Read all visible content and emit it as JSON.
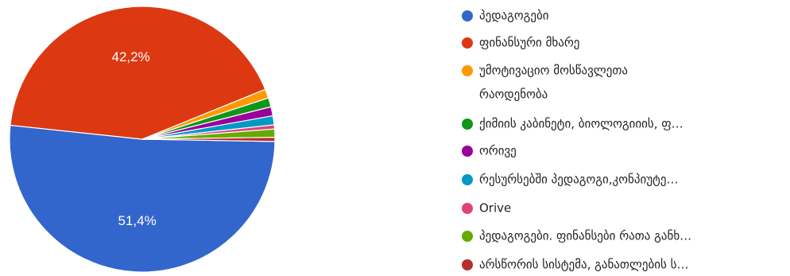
{
  "chart_data": {
    "type": "pie",
    "slices": [
      {
        "label": "პედაგოგები",
        "value": 51.4,
        "value_label": "51,4%",
        "color": "#3366cc"
      },
      {
        "label": "ფინანსური მხარე",
        "value": 42.2,
        "value_label": "42,2%",
        "color": "#dc3912"
      },
      {
        "label": "უმოტივაციო მოსწავლეთა რაოდენობა",
        "value": 1.1,
        "color": "#ff9900"
      },
      {
        "label": "ქიმიის კაბინეტი, ბიოლოგიიის, ფ…",
        "value": 1.1,
        "color": "#109618"
      },
      {
        "label": "ორივე",
        "value": 1.1,
        "color": "#990099"
      },
      {
        "label": "რესურსებში პედაგოგი,კონპიუტე…",
        "value": 1.1,
        "color": "#0099c6"
      },
      {
        "label": "Orive",
        "value": 0.5,
        "color": "#dd4477"
      },
      {
        "label": "პედაგოგები. ფინანსები რათა განხ…",
        "value": 1.0,
        "color": "#66aa00"
      },
      {
        "label": "არსწორის სისტემა, განათლების ს…",
        "value": 0.5,
        "color": "#b82e2e"
      }
    ],
    "legend_position": "right"
  }
}
